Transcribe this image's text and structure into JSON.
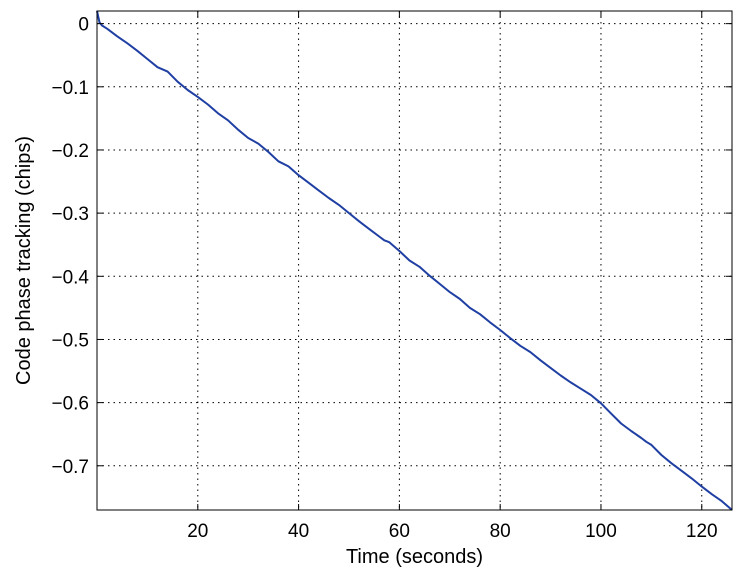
{
  "chart_data": {
    "type": "line",
    "title": "",
    "xlabel": "Time (seconds)",
    "ylabel": "Code phase tracking (chips)",
    "xlim": [
      0,
      126
    ],
    "ylim": [
      -0.77,
      0.02
    ],
    "grid": true,
    "line_color": "#1f3fa3",
    "x_ticks": [
      20,
      40,
      60,
      80,
      100,
      120
    ],
    "x_tick_labels": [
      "20",
      "40",
      "60",
      "80",
      "100",
      "120"
    ],
    "y_ticks": [
      0,
      -0.1,
      -0.2,
      -0.3,
      -0.4,
      -0.5,
      -0.6,
      -0.7
    ],
    "y_tick_labels": [
      "0",
      "−0.1",
      "−0.2",
      "−0.3",
      "−0.4",
      "−0.5",
      "−0.6",
      "−0.7"
    ],
    "series": [
      {
        "x": [
          0,
          0.5,
          1,
          2,
          4,
          6,
          8,
          10,
          12,
          14,
          16,
          18,
          20,
          22,
          24,
          26,
          28,
          30,
          32,
          34,
          36,
          38,
          40,
          42,
          44,
          46,
          48,
          50,
          52,
          54,
          56,
          57,
          58,
          60,
          62,
          64,
          66,
          68,
          70,
          72,
          74,
          76,
          78,
          80,
          82,
          84,
          86,
          88,
          90,
          92,
          94,
          96,
          98,
          100,
          102,
          104,
          106,
          108,
          109,
          110,
          112,
          114,
          116,
          118,
          120,
          122,
          124,
          126
        ],
        "y": [
          0.02,
          0.002,
          -0.003,
          -0.008,
          -0.02,
          -0.031,
          -0.043,
          -0.056,
          -0.069,
          -0.076,
          -0.092,
          -0.105,
          -0.116,
          -0.128,
          -0.142,
          -0.153,
          -0.168,
          -0.181,
          -0.19,
          -0.203,
          -0.218,
          -0.226,
          -0.24,
          -0.252,
          -0.264,
          -0.276,
          -0.287,
          -0.3,
          -0.313,
          -0.325,
          -0.337,
          -0.343,
          -0.346,
          -0.36,
          -0.375,
          -0.385,
          -0.399,
          -0.412,
          -0.425,
          -0.436,
          -0.45,
          -0.46,
          -0.473,
          -0.485,
          -0.498,
          -0.51,
          -0.52,
          -0.533,
          -0.545,
          -0.557,
          -0.568,
          -0.578,
          -0.588,
          -0.601,
          -0.617,
          -0.633,
          -0.645,
          -0.656,
          -0.662,
          -0.667,
          -0.683,
          -0.696,
          -0.708,
          -0.72,
          -0.733,
          -0.745,
          -0.756,
          -0.77
        ]
      }
    ]
  }
}
